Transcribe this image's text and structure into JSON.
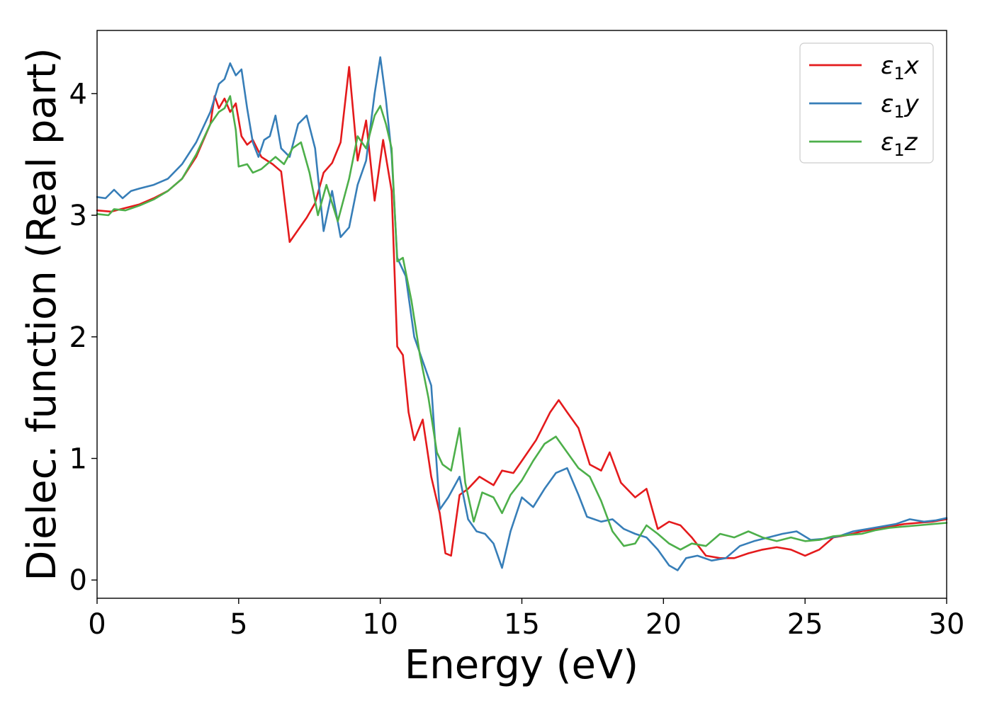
{
  "chart_data": {
    "type": "line",
    "title": "",
    "xlabel": "Energy (eV)",
    "ylabel": "Dielec. function (Real part)",
    "xlim": [
      0,
      30
    ],
    "ylim": [
      -0.15,
      4.52
    ],
    "xticks": [
      0,
      5,
      10,
      15,
      20,
      25,
      30
    ],
    "yticks": [
      0,
      1,
      2,
      3,
      4
    ],
    "xtick_labels": [
      "0",
      "5",
      "10",
      "15",
      "20",
      "25",
      "30"
    ],
    "ytick_labels": [
      "0",
      "1",
      "2",
      "3",
      "4"
    ],
    "grid": false,
    "legend_position": "top-right",
    "series": [
      {
        "name": "ε1x",
        "legend_base": "ε",
        "legend_sub": "1",
        "legend_var": "x",
        "color": "#e41a1c",
        "points": [
          [
            0,
            3.04
          ],
          [
            0.5,
            3.03
          ],
          [
            1,
            3.06
          ],
          [
            1.5,
            3.09
          ],
          [
            2,
            3.14
          ],
          [
            2.5,
            3.2
          ],
          [
            3,
            3.3
          ],
          [
            3.5,
            3.48
          ],
          [
            4,
            3.75
          ],
          [
            4.15,
            3.98
          ],
          [
            4.3,
            3.88
          ],
          [
            4.5,
            3.96
          ],
          [
            4.7,
            3.85
          ],
          [
            4.9,
            3.92
          ],
          [
            5.1,
            3.65
          ],
          [
            5.3,
            3.58
          ],
          [
            5.5,
            3.62
          ],
          [
            5.8,
            3.48
          ],
          [
            6.2,
            3.42
          ],
          [
            6.5,
            3.36
          ],
          [
            6.8,
            2.78
          ],
          [
            7.1,
            2.88
          ],
          [
            7.4,
            2.98
          ],
          [
            7.7,
            3.1
          ],
          [
            8,
            3.35
          ],
          [
            8.3,
            3.43
          ],
          [
            8.6,
            3.6
          ],
          [
            8.9,
            4.22
          ],
          [
            9.2,
            3.45
          ],
          [
            9.5,
            3.78
          ],
          [
            9.8,
            3.12
          ],
          [
            10.1,
            3.62
          ],
          [
            10.4,
            3.2
          ],
          [
            10.6,
            1.92
          ],
          [
            10.8,
            1.85
          ],
          [
            11,
            1.38
          ],
          [
            11.2,
            1.15
          ],
          [
            11.5,
            1.32
          ],
          [
            11.8,
            0.85
          ],
          [
            12.1,
            0.55
          ],
          [
            12.3,
            0.22
          ],
          [
            12.5,
            0.2
          ],
          [
            12.8,
            0.7
          ],
          [
            13.1,
            0.75
          ],
          [
            13.5,
            0.85
          ],
          [
            14,
            0.78
          ],
          [
            14.3,
            0.9
          ],
          [
            14.7,
            0.88
          ],
          [
            15,
            0.98
          ],
          [
            15.5,
            1.15
          ],
          [
            16,
            1.38
          ],
          [
            16.3,
            1.48
          ],
          [
            16.6,
            1.38
          ],
          [
            17,
            1.25
          ],
          [
            17.4,
            0.95
          ],
          [
            17.8,
            0.9
          ],
          [
            18.1,
            1.05
          ],
          [
            18.5,
            0.8
          ],
          [
            19,
            0.68
          ],
          [
            19.4,
            0.75
          ],
          [
            19.8,
            0.42
          ],
          [
            20.2,
            0.48
          ],
          [
            20.6,
            0.45
          ],
          [
            21,
            0.35
          ],
          [
            21.5,
            0.2
          ],
          [
            22,
            0.18
          ],
          [
            22.5,
            0.18
          ],
          [
            23,
            0.22
          ],
          [
            23.5,
            0.25
          ],
          [
            24,
            0.27
          ],
          [
            24.5,
            0.25
          ],
          [
            25,
            0.2
          ],
          [
            25.5,
            0.25
          ],
          [
            26,
            0.35
          ],
          [
            26.5,
            0.37
          ],
          [
            27,
            0.4
          ],
          [
            27.5,
            0.42
          ],
          [
            28,
            0.44
          ],
          [
            28.5,
            0.46
          ],
          [
            29,
            0.47
          ],
          [
            29.5,
            0.48
          ],
          [
            30,
            0.5
          ]
        ]
      },
      {
        "name": "ε1y",
        "legend_base": "ε",
        "legend_sub": "1",
        "legend_var": "y",
        "color": "#377eb8",
        "points": [
          [
            0,
            3.15
          ],
          [
            0.3,
            3.14
          ],
          [
            0.6,
            3.21
          ],
          [
            0.9,
            3.14
          ],
          [
            1.2,
            3.2
          ],
          [
            1.5,
            3.22
          ],
          [
            2,
            3.25
          ],
          [
            2.5,
            3.3
          ],
          [
            3,
            3.42
          ],
          [
            3.5,
            3.6
          ],
          [
            4,
            3.85
          ],
          [
            4.3,
            4.08
          ],
          [
            4.5,
            4.12
          ],
          [
            4.7,
            4.25
          ],
          [
            4.9,
            4.15
          ],
          [
            5.1,
            4.2
          ],
          [
            5.3,
            3.88
          ],
          [
            5.5,
            3.6
          ],
          [
            5.7,
            3.48
          ],
          [
            5.9,
            3.62
          ],
          [
            6.1,
            3.65
          ],
          [
            6.3,
            3.82
          ],
          [
            6.5,
            3.55
          ],
          [
            6.8,
            3.48
          ],
          [
            7.1,
            3.75
          ],
          [
            7.4,
            3.82
          ],
          [
            7.7,
            3.55
          ],
          [
            8,
            2.87
          ],
          [
            8.3,
            3.2
          ],
          [
            8.6,
            2.82
          ],
          [
            8.9,
            2.9
          ],
          [
            9.2,
            3.25
          ],
          [
            9.5,
            3.45
          ],
          [
            9.8,
            4.0
          ],
          [
            10,
            4.3
          ],
          [
            10.2,
            3.95
          ],
          [
            10.4,
            3.5
          ],
          [
            10.6,
            2.65
          ],
          [
            10.9,
            2.5
          ],
          [
            11.2,
            2.0
          ],
          [
            11.5,
            1.8
          ],
          [
            11.8,
            1.6
          ],
          [
            12.1,
            0.58
          ],
          [
            12.4,
            0.68
          ],
          [
            12.8,
            0.85
          ],
          [
            13.1,
            0.5
          ],
          [
            13.4,
            0.4
          ],
          [
            13.7,
            0.38
          ],
          [
            14,
            0.3
          ],
          [
            14.3,
            0.1
          ],
          [
            14.6,
            0.4
          ],
          [
            15,
            0.68
          ],
          [
            15.4,
            0.6
          ],
          [
            15.8,
            0.75
          ],
          [
            16.2,
            0.88
          ],
          [
            16.6,
            0.92
          ],
          [
            17,
            0.7
          ],
          [
            17.3,
            0.52
          ],
          [
            17.8,
            0.48
          ],
          [
            18.2,
            0.5
          ],
          [
            18.6,
            0.42
          ],
          [
            19,
            0.38
          ],
          [
            19.4,
            0.35
          ],
          [
            19.8,
            0.25
          ],
          [
            20.2,
            0.12
          ],
          [
            20.5,
            0.08
          ],
          [
            20.8,
            0.18
          ],
          [
            21.2,
            0.2
          ],
          [
            21.7,
            0.16
          ],
          [
            22.2,
            0.18
          ],
          [
            22.7,
            0.28
          ],
          [
            23.2,
            0.32
          ],
          [
            23.7,
            0.35
          ],
          [
            24.2,
            0.38
          ],
          [
            24.7,
            0.4
          ],
          [
            25.2,
            0.33
          ],
          [
            25.7,
            0.34
          ],
          [
            26.2,
            0.36
          ],
          [
            26.7,
            0.4
          ],
          [
            27.2,
            0.42
          ],
          [
            27.7,
            0.44
          ],
          [
            28.2,
            0.46
          ],
          [
            28.7,
            0.5
          ],
          [
            29.2,
            0.48
          ],
          [
            29.6,
            0.49
          ],
          [
            30,
            0.51
          ]
        ]
      },
      {
        "name": "ε1z",
        "legend_base": "ε",
        "legend_sub": "1",
        "legend_var": "z",
        "color": "#4daf4a",
        "points": [
          [
            0,
            3.01
          ],
          [
            0.4,
            3.0
          ],
          [
            0.6,
            3.05
          ],
          [
            1,
            3.04
          ],
          [
            1.5,
            3.08
          ],
          [
            2,
            3.13
          ],
          [
            2.5,
            3.2
          ],
          [
            3,
            3.3
          ],
          [
            3.5,
            3.5
          ],
          [
            4,
            3.75
          ],
          [
            4.3,
            3.85
          ],
          [
            4.5,
            3.88
          ],
          [
            4.7,
            3.98
          ],
          [
            4.9,
            3.7
          ],
          [
            5,
            3.4
          ],
          [
            5.3,
            3.42
          ],
          [
            5.5,
            3.35
          ],
          [
            5.8,
            3.38
          ],
          [
            6,
            3.42
          ],
          [
            6.3,
            3.48
          ],
          [
            6.6,
            3.42
          ],
          [
            6.9,
            3.55
          ],
          [
            7.2,
            3.6
          ],
          [
            7.5,
            3.35
          ],
          [
            7.8,
            3.0
          ],
          [
            8.1,
            3.25
          ],
          [
            8.5,
            2.95
          ],
          [
            8.9,
            3.3
          ],
          [
            9.2,
            3.65
          ],
          [
            9.5,
            3.55
          ],
          [
            9.8,
            3.82
          ],
          [
            10,
            3.9
          ],
          [
            10.2,
            3.75
          ],
          [
            10.4,
            3.55
          ],
          [
            10.6,
            2.62
          ],
          [
            10.8,
            2.65
          ],
          [
            11.1,
            2.3
          ],
          [
            11.4,
            1.85
          ],
          [
            11.7,
            1.5
          ],
          [
            12,
            1.05
          ],
          [
            12.2,
            0.95
          ],
          [
            12.5,
            0.9
          ],
          [
            12.8,
            1.25
          ],
          [
            13,
            0.8
          ],
          [
            13.3,
            0.48
          ],
          [
            13.6,
            0.72
          ],
          [
            14,
            0.68
          ],
          [
            14.3,
            0.55
          ],
          [
            14.6,
            0.7
          ],
          [
            15,
            0.82
          ],
          [
            15.4,
            0.98
          ],
          [
            15.8,
            1.12
          ],
          [
            16.2,
            1.18
          ],
          [
            16.6,
            1.05
          ],
          [
            17,
            0.92
          ],
          [
            17.4,
            0.85
          ],
          [
            17.8,
            0.65
          ],
          [
            18.2,
            0.4
          ],
          [
            18.6,
            0.28
          ],
          [
            19,
            0.3
          ],
          [
            19.4,
            0.45
          ],
          [
            19.8,
            0.38
          ],
          [
            20.2,
            0.3
          ],
          [
            20.6,
            0.25
          ],
          [
            21,
            0.3
          ],
          [
            21.5,
            0.28
          ],
          [
            22,
            0.38
          ],
          [
            22.5,
            0.35
          ],
          [
            23,
            0.4
          ],
          [
            23.5,
            0.35
          ],
          [
            24,
            0.32
          ],
          [
            24.5,
            0.35
          ],
          [
            25,
            0.32
          ],
          [
            25.5,
            0.33
          ],
          [
            26,
            0.36
          ],
          [
            26.5,
            0.37
          ],
          [
            27,
            0.38
          ],
          [
            27.5,
            0.41
          ],
          [
            28,
            0.43
          ],
          [
            28.5,
            0.44
          ],
          [
            29,
            0.45
          ],
          [
            29.5,
            0.46
          ],
          [
            30,
            0.47
          ]
        ]
      }
    ]
  }
}
